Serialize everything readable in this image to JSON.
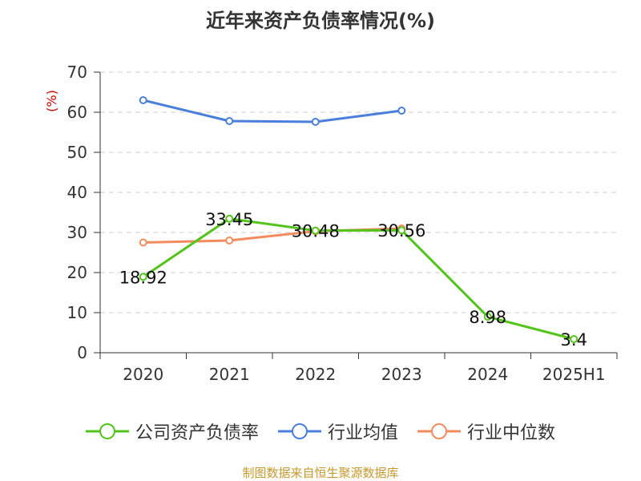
{
  "chart_data": {
    "type": "line",
    "title": "近年来资产负债率情况(%)",
    "ylabel": "(%)",
    "xlabel": "",
    "categories": [
      "2020",
      "2021",
      "2022",
      "2023",
      "2024",
      "2025H1"
    ],
    "ylim": [
      0,
      70
    ],
    "yticks": [
      0,
      10,
      20,
      30,
      40,
      50,
      60,
      70
    ],
    "grid": true,
    "legend_position": "bottom",
    "series": [
      {
        "name": "公司资产负债率",
        "color": "#52c41a",
        "values": [
          18.92,
          33.45,
          30.48,
          30.56,
          8.98,
          3.4
        ],
        "labels": [
          "18.92",
          "33.45",
          "30.48",
          "30.56",
          "8.98",
          "3.4"
        ]
      },
      {
        "name": "行业均值",
        "color": "#4a7fdc",
        "values": [
          63.0,
          57.8,
          57.6,
          60.4,
          null,
          null
        ]
      },
      {
        "name": "行业中位数",
        "color": "#f48b5e",
        "values": [
          27.5,
          28.0,
          30.3,
          31.0,
          null,
          null
        ]
      }
    ]
  },
  "footer": {
    "source": "制图数据来自恒生聚源数据库"
  }
}
